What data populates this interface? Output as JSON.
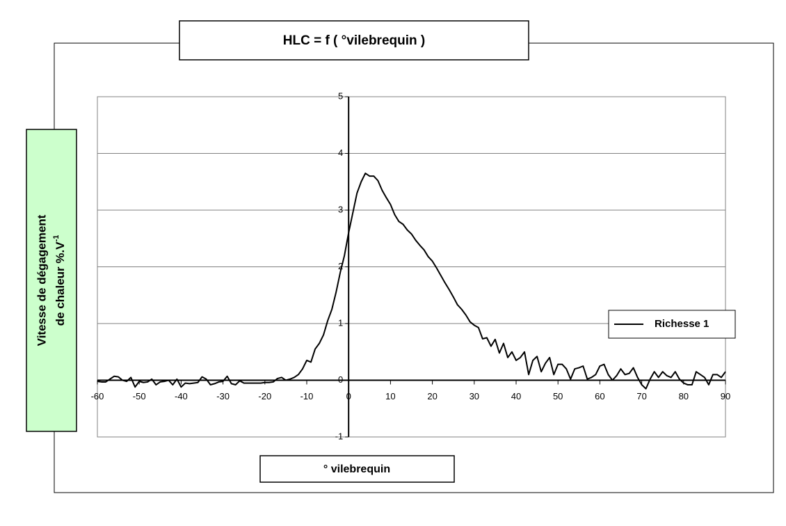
{
  "chart_data": {
    "type": "line",
    "title": "HLC  =  f  ( °vilebrequin )",
    "x_label": "° vilebrequin",
    "y_label": {
      "line1": "Vitesse  de  dégagement",
      "line2": "de  chaleur  %.V",
      "superscript": "-1"
    },
    "xlim": [
      -60,
      90
    ],
    "ylim": [
      -1,
      5
    ],
    "xticks": [
      -60,
      -50,
      -40,
      -30,
      -20,
      -10,
      0,
      10,
      20,
      30,
      40,
      50,
      60,
      70,
      80,
      90
    ],
    "yticks": [
      -1,
      0,
      1,
      2,
      3,
      4,
      5
    ],
    "grid": true,
    "legend": "right",
    "x": [
      -60,
      -59,
      -58,
      -57,
      -56,
      -55,
      -54,
      -53,
      -52,
      -51,
      -50,
      -49,
      -48,
      -47,
      -46,
      -45,
      -44,
      -43,
      -42,
      -41,
      -40,
      -39,
      -38,
      -37,
      -36,
      -35,
      -34,
      -33,
      -32,
      -31,
      -30,
      -29,
      -28,
      -27,
      -26,
      -25,
      -24,
      -23,
      -22,
      -21,
      -20,
      -19,
      -18,
      -17,
      -16,
      -15,
      -14,
      -13,
      -12,
      -11,
      -10,
      -9,
      -8,
      -7,
      -6,
      -5,
      -4,
      -3,
      -2,
      -1,
      0,
      1,
      2,
      3,
      4,
      5,
      6,
      7,
      8,
      9,
      10,
      11,
      12,
      13,
      14,
      15,
      16,
      17,
      18,
      19,
      20,
      21,
      22,
      23,
      24,
      25,
      26,
      27,
      28,
      29,
      30,
      31,
      32,
      33,
      34,
      35,
      36,
      37,
      38,
      39,
      40,
      41,
      42,
      43,
      44,
      45,
      46,
      47,
      48,
      49,
      50,
      51,
      52,
      53,
      54,
      55,
      56,
      57,
      58,
      59,
      60,
      61,
      62,
      63,
      64,
      65,
      66,
      67,
      68,
      69,
      70,
      71,
      72,
      73,
      74,
      75,
      76,
      77,
      78,
      79,
      80,
      81,
      82,
      83,
      84,
      85,
      86,
      87,
      88,
      89,
      90
    ],
    "series": [
      {
        "name": "Richesse  1",
        "color": "#000000",
        "values": [
          -0.02,
          -0.03,
          -0.03,
          0.02,
          0.07,
          0.06,
          0.0,
          -0.02,
          0.05,
          -0.12,
          -0.02,
          -0.04,
          -0.03,
          0.02,
          -0.08,
          -0.03,
          -0.02,
          0.0,
          -0.08,
          0.02,
          -0.12,
          -0.05,
          -0.06,
          -0.05,
          -0.04,
          0.06,
          0.02,
          -0.08,
          -0.06,
          -0.03,
          -0.02,
          0.07,
          -0.06,
          -0.08,
          -0.01,
          -0.05,
          -0.05,
          -0.05,
          -0.05,
          -0.05,
          -0.04,
          -0.04,
          -0.03,
          0.03,
          0.05,
          0,
          0.02,
          0.05,
          0.1,
          0.2,
          0.35,
          0.32,
          0.55,
          0.65,
          0.8,
          1.05,
          1.25,
          1.55,
          1.9,
          2.2,
          2.6,
          2.95,
          3.3,
          3.5,
          3.65,
          3.6,
          3.6,
          3.52,
          3.35,
          3.22,
          3.1,
          2.92,
          2.8,
          2.75,
          2.65,
          2.58,
          2.47,
          2.38,
          2.3,
          2.18,
          2.1,
          1.98,
          1.85,
          1.72,
          1.6,
          1.47,
          1.33,
          1.25,
          1.15,
          1.03,
          0.97,
          0.93,
          0.73,
          0.75,
          0.6,
          0.72,
          0.48,
          0.65,
          0.4,
          0.5,
          0.35,
          0.4,
          0.5,
          0.1,
          0.35,
          0.42,
          0.15,
          0.3,
          0.4,
          0.1,
          0.28,
          0.28,
          0.2,
          0.02,
          0.2,
          0.22,
          0.25,
          0.02,
          0.05,
          0.1,
          0.25,
          0.28,
          0.1,
          0,
          0.08,
          0.2,
          0.1,
          0.12,
          0.22,
          0.05,
          -0.08,
          -0.15,
          0.02,
          0.15,
          0.05,
          0.15,
          0.08,
          0.05,
          0.15,
          0.02,
          -0.05,
          -0.08,
          -0.08,
          0.15,
          0.1,
          0.05,
          -0.08,
          0.1,
          0.1,
          0.05,
          0.15
        ]
      }
    ]
  }
}
